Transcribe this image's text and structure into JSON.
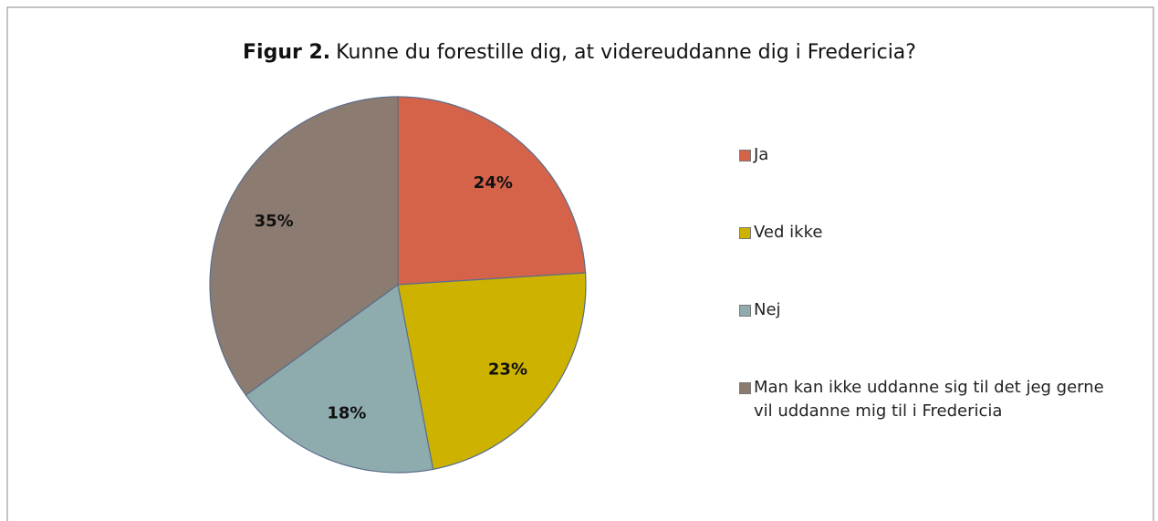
{
  "chart_data": {
    "type": "pie",
    "title_label": "Figur 2.",
    "title": "Kunne du forestille dig, at videreuddanne dig i Fredericia?",
    "categories": [
      "Ja",
      "Ved ikke",
      "Nej",
      "Man kan ikke uddanne sig til det jeg gerne vil uddanne mig til i Fredericia"
    ],
    "values": [
      24,
      23,
      18,
      35
    ],
    "value_labels": [
      "24%",
      "23%",
      "18%",
      "35%"
    ],
    "colors": [
      "#d4634a",
      "#cdb300",
      "#8eacae",
      "#8b7b70"
    ],
    "legend": "right"
  }
}
